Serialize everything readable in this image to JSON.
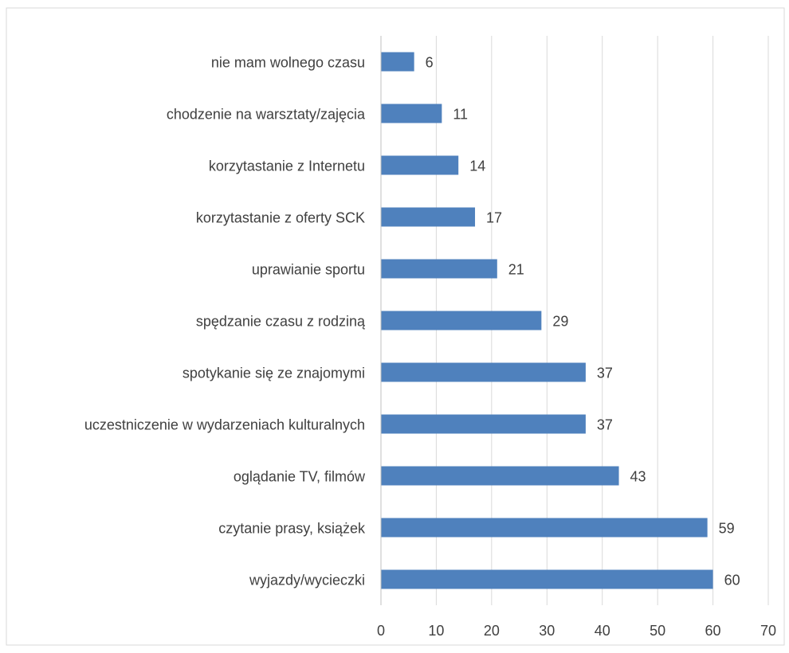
{
  "chart_data": {
    "type": "bar",
    "orientation": "horizontal",
    "title": "",
    "xlabel": "",
    "ylabel": "",
    "xlim": [
      0,
      70
    ],
    "x_ticks": [
      0,
      10,
      20,
      30,
      40,
      50,
      60,
      70
    ],
    "grid": true,
    "legend": "none",
    "bar_color": "#4f81bd",
    "categories": [
      "wyjazdy/wycieczki",
      "czytanie prasy, książek",
      "oglądanie TV, filmów",
      "uczestniczenie w wydarzeniach kulturalnych",
      "spotykanie się ze znajomymi",
      "spędzanie czasu z rodziną",
      "uprawianie sportu",
      "korzytastanie z oferty SCK",
      "korzytastanie z Internetu",
      "chodzenie na warsztaty/zajęcia",
      "nie mam wolnego czasu"
    ],
    "values": [
      60,
      59,
      43,
      37,
      37,
      29,
      21,
      17,
      14,
      11,
      6
    ]
  }
}
